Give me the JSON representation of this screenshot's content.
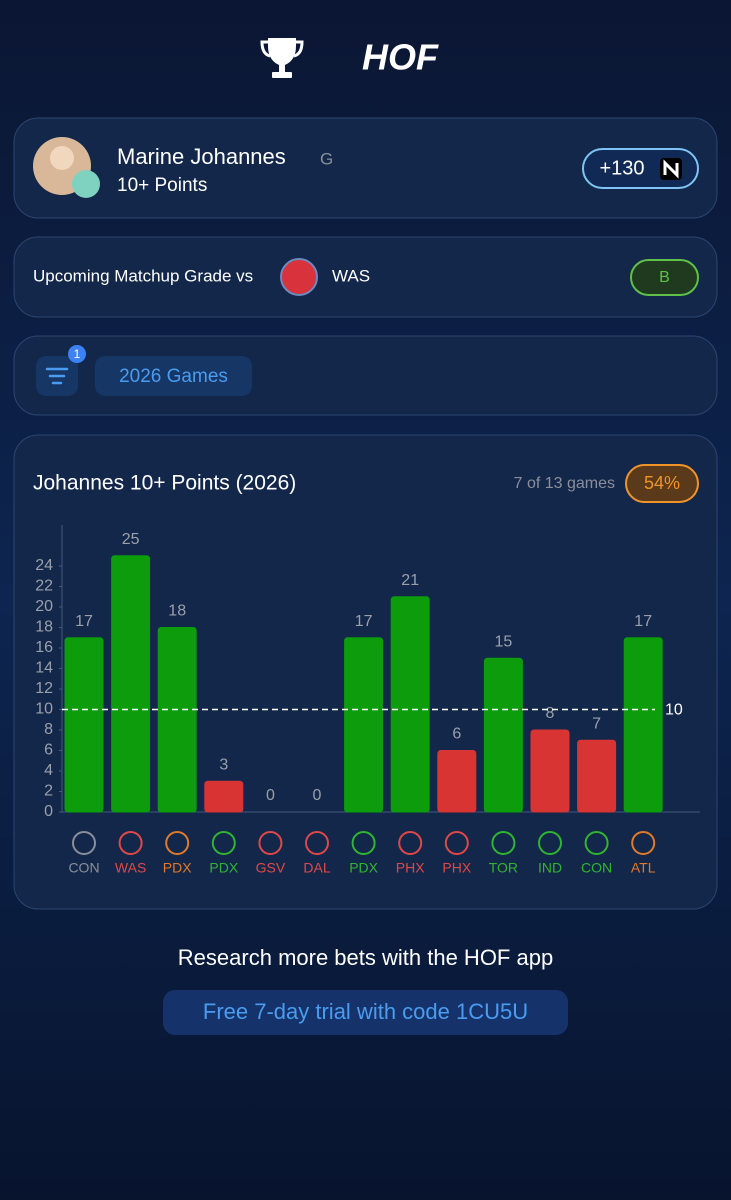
{
  "header": {
    "logo": "HOF"
  },
  "player": {
    "name": "Marine Johannes",
    "position": "G",
    "prop": "10+ Points",
    "odds": "+130"
  },
  "matchup": {
    "label": "Upcoming Matchup Grade vs",
    "opponent": "WAS",
    "grade": "B"
  },
  "filter": {
    "badge": "1",
    "chip": "2026 Games"
  },
  "chart_data": {
    "type": "bar",
    "title": "Johannes 10+ Points (2026)",
    "summary": "7 of 13 games",
    "hit_rate": "54%",
    "categories": [
      "CON",
      "WAS",
      "PDX",
      "PDX",
      "GSV",
      "DAL",
      "PDX",
      "PHX",
      "PHX",
      "TOR",
      "IND",
      "CON",
      "ATL"
    ],
    "category_colors": [
      "#8a8f99",
      "#e04848",
      "#e07a2a",
      "#2fb52f",
      "#e04848",
      "#e04848",
      "#2fb52f",
      "#e04848",
      "#e04848",
      "#2fb52f",
      "#2fb52f",
      "#2fb52f",
      "#e07a2a"
    ],
    "values": [
      17,
      25,
      18,
      3,
      0,
      0,
      17,
      21,
      6,
      15,
      8,
      7,
      17
    ],
    "threshold": 10,
    "bar_colors": {
      "over": "#0c9c0c",
      "under": "#d83434"
    },
    "ylim": [
      0,
      28
    ],
    "yticks": [
      0,
      2,
      4,
      6,
      8,
      10,
      12,
      14,
      16,
      18,
      20,
      22,
      24
    ]
  },
  "footer": {
    "text": "Research more bets with the HOF app",
    "button": "Free 7-day trial with code 1CU5U"
  }
}
